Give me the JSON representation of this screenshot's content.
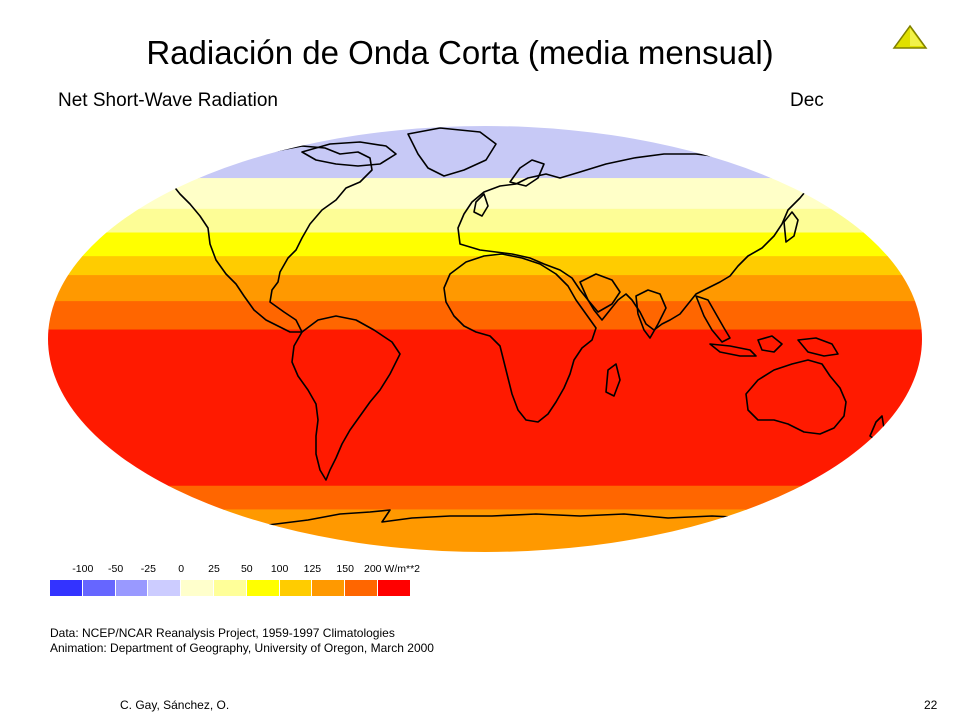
{
  "slide": {
    "title": "Radiación de Onda Corta (media mensual)",
    "author": "C. Gay, Sánchez, O.",
    "page_number": "22",
    "nav_icon": "triangle-up-icon"
  },
  "map": {
    "title": "Net Short-Wave Radiation",
    "month": "Dec",
    "projection": "Robinson",
    "bands": [
      {
        "lat_from": 90,
        "lat_to": 68,
        "color": "#c7c9f6",
        "range": "0 to 25"
      },
      {
        "lat_from": 68,
        "lat_to": 55,
        "color": "#ffffc8",
        "range": "25 to 50"
      },
      {
        "lat_from": 55,
        "lat_to": 45,
        "color": "#fdfd96",
        "range": "50 to 75"
      },
      {
        "lat_from": 45,
        "lat_to": 35,
        "color": "#ffff00",
        "range": "75 to 100"
      },
      {
        "lat_from": 35,
        "lat_to": 27,
        "color": "#ffcc00",
        "range": "100 to 125"
      },
      {
        "lat_from": 27,
        "lat_to": 16,
        "color": "#ff9900",
        "range": "125 to 150"
      },
      {
        "lat_from": 16,
        "lat_to": 4,
        "color": "#ff6600",
        "range": "150 to 175"
      },
      {
        "lat_from": 4,
        "lat_to": -62,
        "color": "#ff1a00",
        "range": "175 to 200"
      },
      {
        "lat_from": -62,
        "lat_to": -72,
        "color": "#ff6600",
        "range": "150 to 175"
      },
      {
        "lat_from": -72,
        "lat_to": -90,
        "color": "#ff9900",
        "range": "125 to 150"
      }
    ]
  },
  "legend": {
    "ticks": [
      "-100",
      "-50",
      "-25",
      "0",
      "25",
      "50",
      "100",
      "125",
      "150",
      "200 W/m**2"
    ],
    "colors": [
      "#3333ff",
      "#6666ff",
      "#9999ff",
      "#ccccff",
      "#ffffcc",
      "#ffff99",
      "#ffff00",
      "#ffcc00",
      "#ff9900",
      "#ff6600",
      "#ff0000"
    ]
  },
  "credits": {
    "line1": "Data:  NCEP/NCAR Reanalysis Project, 1959-1997 Climatologies",
    "line2": "Animation:  Department of Geography, University of Oregon, March 2000"
  }
}
